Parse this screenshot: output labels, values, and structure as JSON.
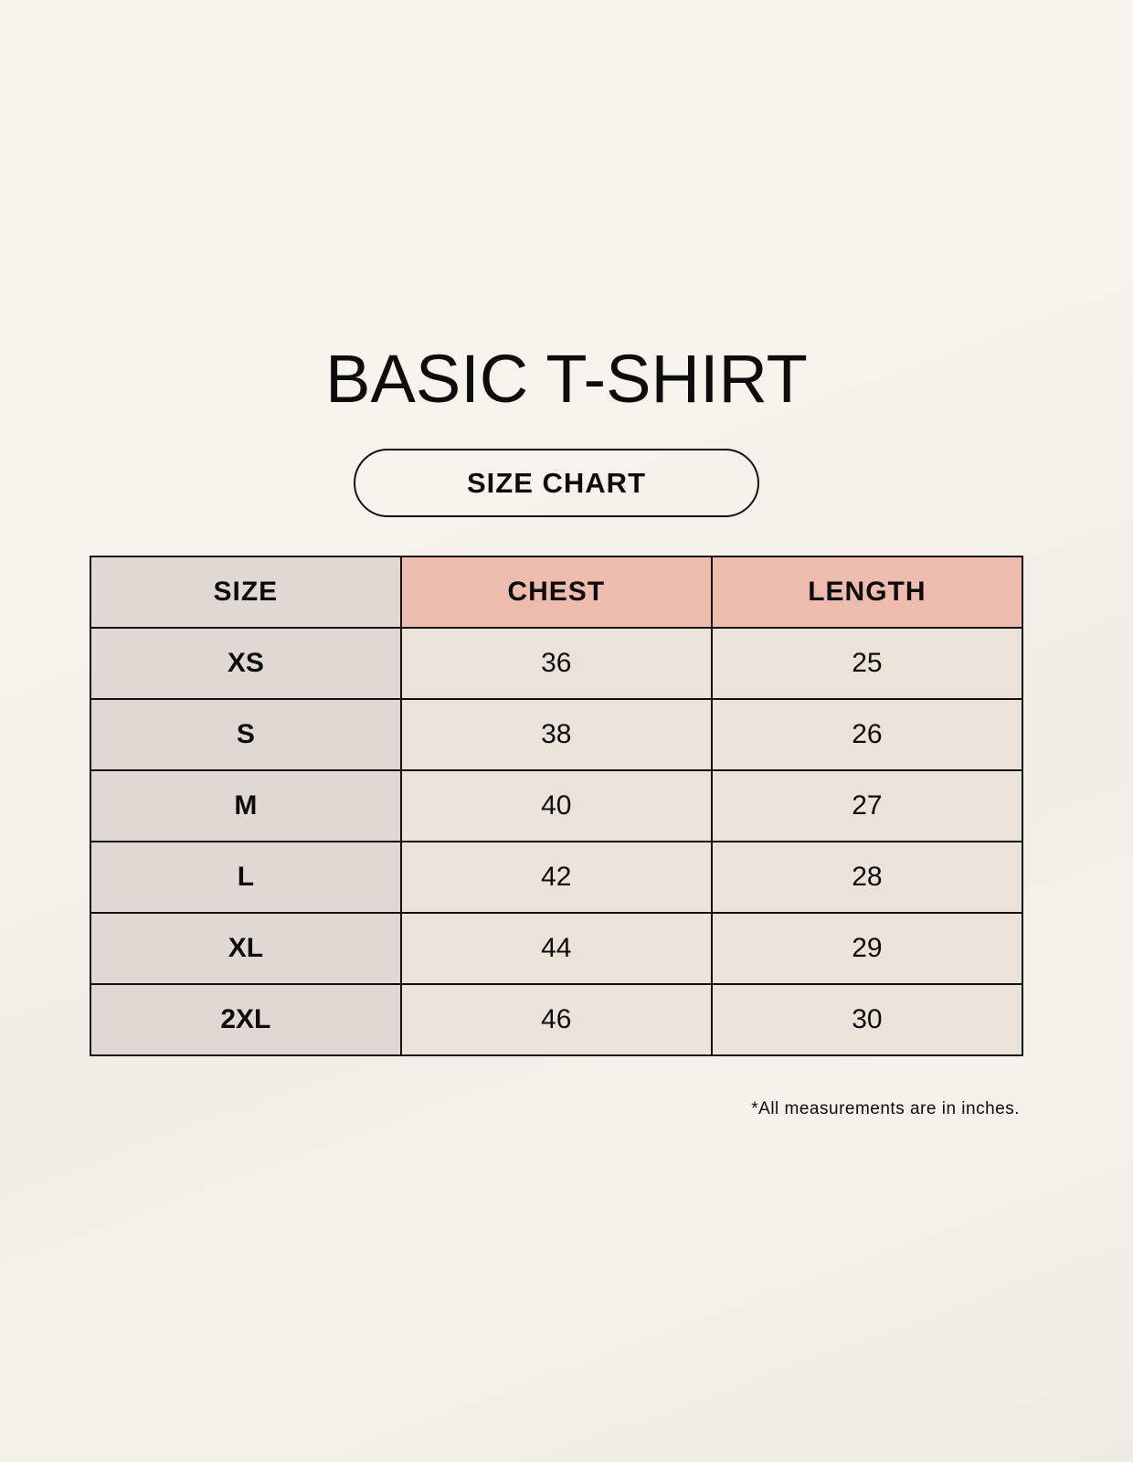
{
  "title": "BASIC T-SHIRT",
  "subtitle": "SIZE CHART",
  "table": {
    "headers": [
      "SIZE",
      "CHEST",
      "LENGTH"
    ],
    "rows": [
      [
        "XS",
        "36",
        "25"
      ],
      [
        "S",
        "38",
        "26"
      ],
      [
        "M",
        "40",
        "27"
      ],
      [
        "L",
        "42",
        "28"
      ],
      [
        "XL",
        "44",
        "29"
      ],
      [
        "2XL",
        "46",
        "30"
      ]
    ]
  },
  "note": "*All measurements are in inches.",
  "colors": {
    "size_column": "#e0d9d3",
    "header_highlight": "#edbcae",
    "value_cells": "#ebe3d9"
  }
}
